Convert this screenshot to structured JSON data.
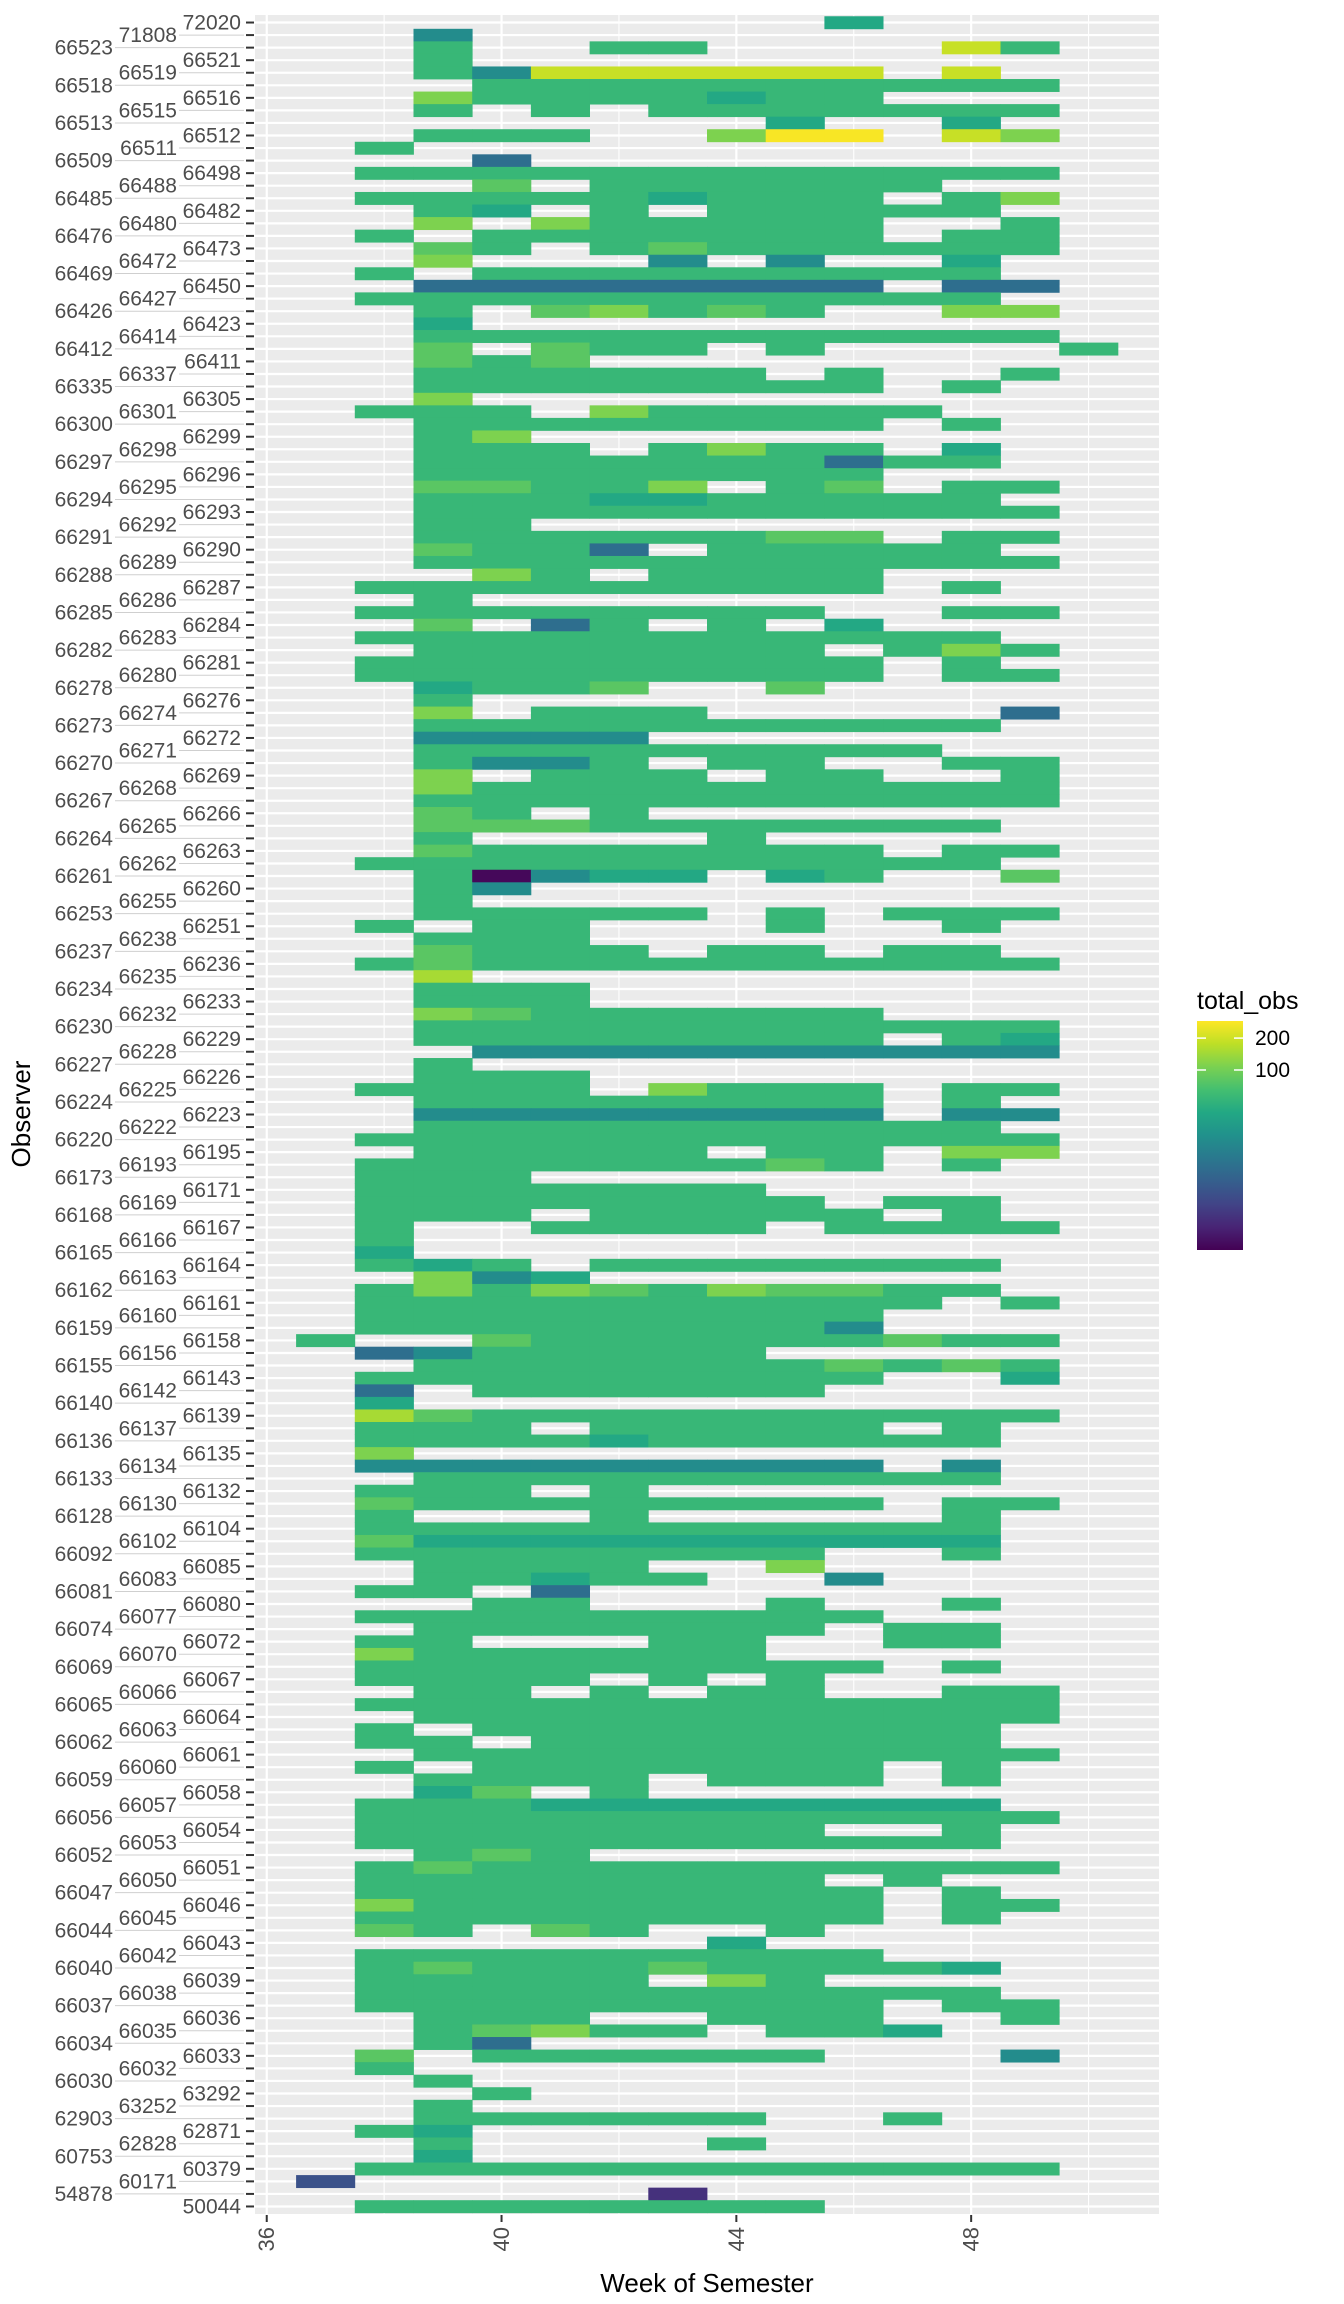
{
  "chart_data": {
    "type": "heatmap",
    "title": "",
    "xlabel": "Week of Semester",
    "ylabel": "Observer",
    "x_weeks": [
      37,
      38,
      39,
      40,
      41,
      42,
      43,
      44,
      45,
      46,
      47,
      48,
      49,
      50
    ],
    "x_ticks": [
      36,
      40,
      44,
      48
    ],
    "xlim": [
      35.8,
      51.2
    ],
    "legend": {
      "title": "total_obs",
      "position": "right",
      "scale": "viridis",
      "trans": "log10",
      "range": [
        2,
        290
      ],
      "breaks": [
        200,
        100
      ]
    },
    "code_values": {
      ".": null,
      "P": 2.2,
      "p": 4,
      "Q": 7,
      "B": 12,
      "T": 22,
      "t": 40,
      "g": 55,
      "m": 80,
      "G": 110,
      "H": 150,
      "L": 190,
      "Y": 280
    },
    "rows": [
      {
        "observer": "72020",
        "cells": ".........t...."
      },
      {
        "observer": "71808",
        "cells": "..T..........."
      },
      {
        "observer": "66523",
        "cells": "..g..gg....Lg."
      },
      {
        "observer": "66521",
        "cells": "..g..........."
      },
      {
        "observer": "66519",
        "cells": "..gTLLLLLL.L.."
      },
      {
        "observer": "66518",
        "cells": "...gggggggggg."
      },
      {
        "observer": "66516",
        "cells": "..Gggggtgg...."
      },
      {
        "observer": "66515",
        "cells": "..g.g.ggggggg."
      },
      {
        "observer": "66513",
        "cells": "........t..t.."
      },
      {
        "observer": "66512",
        "cells": "..ggg..GYY.LG."
      },
      {
        "observer": "66511",
        "cells": ".g............"
      },
      {
        "observer": "66509",
        "cells": "...B.........."
      },
      {
        "observer": "66498",
        "cells": ".gggggggggggg."
      },
      {
        "observer": "66488",
        "cells": "...m.gggggg..."
      },
      {
        "observer": "66485",
        "cells": ".gggggtggg.gG."
      },
      {
        "observer": "66482",
        "cells": "..gt.g.ggggg.."
      },
      {
        "observer": "66480",
        "cells": "..G.Gggggg..g."
      },
      {
        "observer": "66476",
        "cells": ".g.ggggggg.gg."
      },
      {
        "observer": "66473",
        "cells": "..mg.gmgggggg."
      },
      {
        "observer": "66472",
        "cells": "..G...T.T..t.."
      },
      {
        "observer": "66469",
        "cells": ".g.ggggggggg.."
      },
      {
        "observer": "66450",
        "cells": "..BBBBBBBB.BB."
      },
      {
        "observer": "66427",
        "cells": ".ggggggggggg.."
      },
      {
        "observer": "66426",
        "cells": "..g.mGgmg..GG."
      },
      {
        "observer": "66423",
        "cells": "..t..........."
      },
      {
        "observer": "66414",
        "cells": "..ggggggggggg."
      },
      {
        "observer": "66412",
        "cells": "..m.mgg.g....g"
      },
      {
        "observer": "66411",
        "cells": "..mgm........."
      },
      {
        "observer": "66337",
        "cells": "..gggggg.g..g."
      },
      {
        "observer": "66335",
        "cells": "..gggggggg.g.."
      },
      {
        "observer": "66305",
        "cells": "..G..........."
      },
      {
        "observer": "66301",
        "cells": ".ggg.Gggggg..."
      },
      {
        "observer": "66300",
        "cells": "..gggggggg.g.."
      },
      {
        "observer": "66299",
        "cells": "..gG.........."
      },
      {
        "observer": "66298",
        "cells": "..ggg.gGgg.t.."
      },
      {
        "observer": "66297",
        "cells": "..gggggggBgg.."
      },
      {
        "observer": "66296",
        "cells": "..gggggggg...."
      },
      {
        "observer": "66295",
        "cells": "..mmggG.gm.gg."
      },
      {
        "observer": "66294",
        "cells": "..gggttggggg.."
      },
      {
        "observer": "66293",
        "cells": "..ggggggggggg."
      },
      {
        "observer": "66292",
        "cells": "..gg.........."
      },
      {
        "observer": "66291",
        "cells": "..ggggggmm.gg."
      },
      {
        "observer": "66290",
        "cells": "..mggB.ggggg.."
      },
      {
        "observer": "66289",
        "cells": "..ggggggggggg."
      },
      {
        "observer": "66288",
        "cells": "...Gg.gggg...."
      },
      {
        "observer": "66287",
        "cells": ".ggggggggg.g.."
      },
      {
        "observer": "66286",
        "cells": "..g..........."
      },
      {
        "observer": "66285",
        "cells": ".gggggggg..gg."
      },
      {
        "observer": "66284",
        "cells": "..m.Bg.g.t...."
      },
      {
        "observer": "66283",
        "cells": ".ggggggggggg.."
      },
      {
        "observer": "66282",
        "cells": "..ggggggg.gGg."
      },
      {
        "observer": "66281",
        "cells": ".ggggggggg.g.."
      },
      {
        "observer": "66280",
        "cells": ".ggggggggg.gg."
      },
      {
        "observer": "66278",
        "cells": "..tggm..m....."
      },
      {
        "observer": "66276",
        "cells": "..g..........."
      },
      {
        "observer": "66274",
        "cells": "..G.ggg.....B."
      },
      {
        "observer": "66273",
        "cells": "..gggggggggg.."
      },
      {
        "observer": "66272",
        "cells": "..TTTT........"
      },
      {
        "observer": "66271",
        "cells": "..ggggggggg..."
      },
      {
        "observer": "66270",
        "cells": "..gTTg.gg..gg."
      },
      {
        "observer": "66269",
        "cells": "..G.ggg.gg..g."
      },
      {
        "observer": "66268",
        "cells": "..Ggggggggggg."
      },
      {
        "observer": "66267",
        "cells": "..ggggggggggg."
      },
      {
        "observer": "66266",
        "cells": "..mg.g........"
      },
      {
        "observer": "66265",
        "cells": "..mmmggggggg.."
      },
      {
        "observer": "66264",
        "cells": "..g....g......"
      },
      {
        "observer": "66263",
        "cells": "..mggggggg.gg."
      },
      {
        "observer": "66262",
        "cells": ".ggggggggggg.."
      },
      {
        "observer": "66261",
        "cells": "..gPTtt.tg..m."
      },
      {
        "observer": "66260",
        "cells": "..gT.........."
      },
      {
        "observer": "66255",
        "cells": "..g..........."
      },
      {
        "observer": "66253",
        "cells": "..ggggg.g.ggg."
      },
      {
        "observer": "66251",
        "cells": ".g.gg...g..g.."
      },
      {
        "observer": "66238",
        "cells": "..ggg........."
      },
      {
        "observer": "66237",
        "cells": "..mggg.gg.gg.."
      },
      {
        "observer": "66236",
        "cells": ".gmgggggggggg."
      },
      {
        "observer": "66235",
        "cells": "..H..........."
      },
      {
        "observer": "66234",
        "cells": "..ggg........."
      },
      {
        "observer": "66233",
        "cells": "..ggg........."
      },
      {
        "observer": "66232",
        "cells": "..Gmgggggg...."
      },
      {
        "observer": "66230",
        "cells": "..ggggggggggg."
      },
      {
        "observer": "66229",
        "cells": "..gggggggg.gt."
      },
      {
        "observer": "66228",
        "cells": "...TTTTTTTTTT."
      },
      {
        "observer": "66227",
        "cells": "..g..........."
      },
      {
        "observer": "66226",
        "cells": "..ggg........."
      },
      {
        "observer": "66225",
        "cells": ".gggg.Gggg.gg."
      },
      {
        "observer": "66224",
        "cells": "..gggggggg.g.."
      },
      {
        "observer": "66223",
        "cells": "..TTTTTTTT.TT."
      },
      {
        "observer": "66222",
        "cells": "..gggggggggg.."
      },
      {
        "observer": "66220",
        "cells": ".gggggggggggg."
      },
      {
        "observer": "66195",
        "cells": "..ggggg.gg.GG."
      },
      {
        "observer": "66193",
        "cells": ".gggggggmg.g.."
      },
      {
        "observer": "66173",
        "cells": ".ggg.........."
      },
      {
        "observer": "66171",
        "cells": ".ggggggg......"
      },
      {
        "observer": "66169",
        "cells": ".gggggggg.gg.."
      },
      {
        "observer": "66168",
        "cells": ".ggg.ggggg.g.."
      },
      {
        "observer": "66167",
        "cells": ".g..gggg.gggg."
      },
      {
        "observer": "66166",
        "cells": ".g............"
      },
      {
        "observer": "66165",
        "cells": ".t............"
      },
      {
        "observer": "66164",
        "cells": ".gtg.ggggggg.."
      },
      {
        "observer": "66163",
        "cells": "..GTt........."
      },
      {
        "observer": "66162",
        "cells": ".gGgGmgGmmgg.."
      },
      {
        "observer": "66161",
        "cells": ".gggggggggg.g."
      },
      {
        "observer": "66160",
        "cells": ".ggggggggg...."
      },
      {
        "observer": "66159",
        "cells": ".ggggggggT...."
      },
      {
        "observer": "66158",
        "cells": "g..mggggggmgg."
      },
      {
        "observer": "66156",
        "cells": ".BTggggg......"
      },
      {
        "observer": "66155",
        "cells": "..gggggggmgmg."
      },
      {
        "observer": "66143",
        "cells": ".ggggggggg..t."
      },
      {
        "observer": "66142",
        "cells": ".B.gggggg....."
      },
      {
        "observer": "66140",
        "cells": ".t............"
      },
      {
        "observer": "66139",
        "cells": ".Hmgggggggggg."
      },
      {
        "observer": "66137",
        "cells": ".ggg.ggggg.g.."
      },
      {
        "observer": "66136",
        "cells": ".ggggtgggggg.."
      },
      {
        "observer": "66135",
        "cells": ".G............"
      },
      {
        "observer": "66134",
        "cells": ".TTTTTTTTT.T.."
      },
      {
        "observer": "66133",
        "cells": "..gggggggggg.."
      },
      {
        "observer": "66132",
        "cells": ".ggg.g........"
      },
      {
        "observer": "66130",
        "cells": ".mgggggggg.gg."
      },
      {
        "observer": "66128",
        "cells": ".g...g.....g.."
      },
      {
        "observer": "66104",
        "cells": ".ggggggggggg.."
      },
      {
        "observer": "66102",
        "cells": ".mtttttttttt.."
      },
      {
        "observer": "66092",
        "cells": ".gggggggg..g.."
      },
      {
        "observer": "66085",
        "cells": "..gggg..G....."
      },
      {
        "observer": "66083",
        "cells": "..ggtgg..T...."
      },
      {
        "observer": "66081",
        "cells": ".gg.B........."
      },
      {
        "observer": "66080",
        "cells": "...gg...g..g.."
      },
      {
        "observer": "66077",
        "cells": ".ggggggggg...."
      },
      {
        "observer": "66074",
        "cells": "..ggggggg.gg.."
      },
      {
        "observer": "66072",
        "cells": ".gg...gg..gg.."
      },
      {
        "observer": "66070",
        "cells": ".Ggggggg......"
      },
      {
        "observer": "66069",
        "cells": ".ggggggggg.g.."
      },
      {
        "observer": "66067",
        "cells": ".gggg.g.g....."
      },
      {
        "observer": "66066",
        "cells": "..gg.g.gg..gg."
      },
      {
        "observer": "66065",
        "cells": ".gggggggggggg."
      },
      {
        "observer": "66064",
        "cells": "..ggggggggggg."
      },
      {
        "observer": "66063",
        "cells": ".g.ggggggggg.."
      },
      {
        "observer": "66062",
        "cells": ".gg.gggggggg.."
      },
      {
        "observer": "66061",
        "cells": "..ggggggggggg."
      },
      {
        "observer": "66060",
        "cells": ".g.ggggggg.g.."
      },
      {
        "observer": "66059",
        "cells": "..gggg.ggg.g.."
      },
      {
        "observer": "66058",
        "cells": "..tm.g........"
      },
      {
        "observer": "66057",
        "cells": ".gggtttttttt.."
      },
      {
        "observer": "66056",
        "cells": ".gggggggggggg."
      },
      {
        "observer": "66054",
        "cells": ".gggggggg..g.."
      },
      {
        "observer": "66053",
        "cells": ".ggggggggggg.."
      },
      {
        "observer": "66052",
        "cells": "..gmg........."
      },
      {
        "observer": "66051",
        "cells": ".gmgggggggggg."
      },
      {
        "observer": "66050",
        "cells": ".gggggggg.g..."
      },
      {
        "observer": "66047",
        "cells": ".ggggggggg.g.."
      },
      {
        "observer": "66046",
        "cells": ".Ggggggggg.gg."
      },
      {
        "observer": "66045",
        "cells": ".ggggggggg.g.."
      },
      {
        "observer": "66044",
        "cells": ".mg.mg..g....."
      },
      {
        "observer": "66043",
        "cells": ".......t......"
      },
      {
        "observer": "66042",
        "cells": ".ggggggggg...."
      },
      {
        "observer": "66040",
        "cells": ".gmgggmggggt.."
      },
      {
        "observer": "66039",
        "cells": ".ggggg.Gg....."
      },
      {
        "observer": "66038",
        "cells": ".ggggggggggg.."
      },
      {
        "observer": "66037",
        "cells": ".ggggggggg.gg."
      },
      {
        "observer": "66036",
        "cells": "..ggg..ggg..g."
      },
      {
        "observer": "66035",
        "cells": "..gmGgg.ggt..."
      },
      {
        "observer": "66034",
        "cells": "..gB.........."
      },
      {
        "observer": "66033",
        "cells": ".m.gggggg...T."
      },
      {
        "observer": "66032",
        "cells": ".g............"
      },
      {
        "observer": "66030",
        "cells": "..g..........."
      },
      {
        "observer": "63292",
        "cells": "...g.........."
      },
      {
        "observer": "63252",
        "cells": "..g..........."
      },
      {
        "observer": "62903",
        "cells": "..gggggg..g..."
      },
      {
        "observer": "62871",
        "cells": ".gt..........."
      },
      {
        "observer": "62828",
        "cells": "..g....g......"
      },
      {
        "observer": "60753",
        "cells": "..t..........."
      },
      {
        "observer": "60379",
        "cells": ".gggggggggggg."
      },
      {
        "observer": "60171",
        "cells": "Q............."
      },
      {
        "observer": "54878",
        "cells": "......p......."
      },
      {
        "observer": "50044",
        "cells": ".gggggggg....."
      }
    ]
  },
  "colors": {
    "panel_bg": "#ebebeb",
    "grid": "#ffffff",
    "viridis": [
      "#440154",
      "#482475",
      "#414487",
      "#355f8d",
      "#2a788e",
      "#21918c",
      "#22a884",
      "#44bf70",
      "#7ad151",
      "#bddf26",
      "#fde725"
    ]
  }
}
